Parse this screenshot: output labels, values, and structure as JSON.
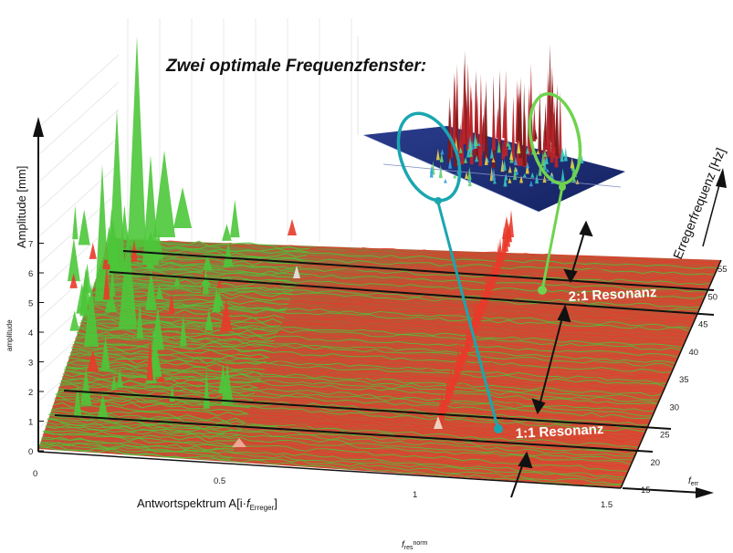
{
  "chart_data": {
    "type": "waterfall-3d",
    "title": "Zwei optimale Frequenzfenster:",
    "y_axis_label": "Amplitude  [mm]",
    "y_axis_inner_label": "amplitude",
    "y_ticks": [
      "0",
      "1",
      "2",
      "3",
      "4",
      "5",
      "6",
      "7"
    ],
    "x_axis_label": "Antwortspektrum A[i",
    "x_axis_label_f": "f",
    "x_axis_label_sub": "Erreger",
    "x_axis_label_close": "]",
    "x_ticks": [
      "0",
      "0.5",
      "1",
      "1.5"
    ],
    "x_bottom_label": "f",
    "x_bottom_label_sub": "res",
    "x_bottom_label_sup": "norm",
    "z_axis_label": "Erregerfrequenz [Hz]",
    "z_ticks": [
      "15",
      "20",
      "25",
      "30",
      "35",
      "40",
      "45",
      "50",
      "55"
    ],
    "z_corner_label": "f",
    "z_corner_sub": "err",
    "annotations": [
      "1:1 Resonanz",
      "2:1 Resonanz"
    ],
    "series_colors": {
      "green": "#4cc63a",
      "red": "#e83a2a",
      "cyan": "#1aa6b0",
      "light_green": "#6fd34f"
    }
  }
}
